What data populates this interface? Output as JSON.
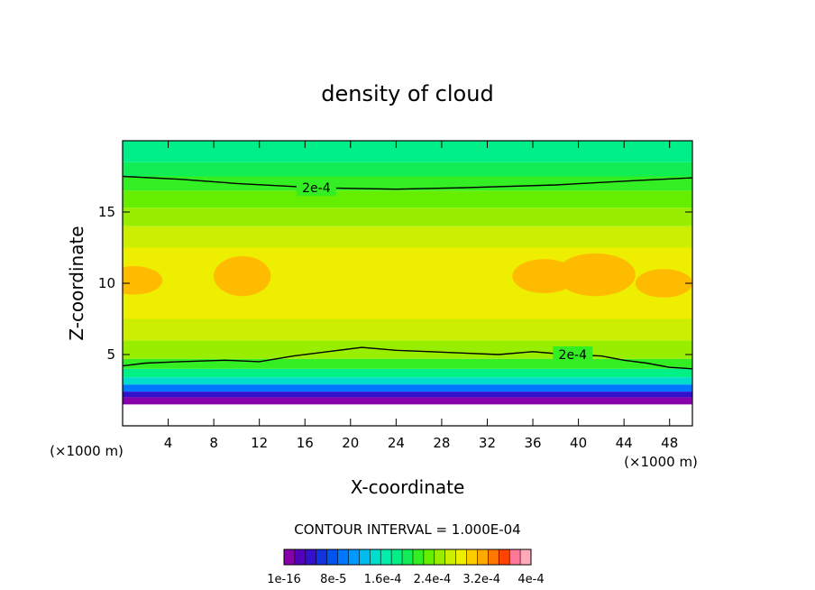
{
  "chart_data": {
    "type": "heatmap",
    "title": "density of cloud",
    "xlabel": "X-coordinate",
    "ylabel": "Z-coordinate",
    "x_unit": "(×1000 m)",
    "y_unit": "(×1000 m)",
    "xlim": [
      0,
      50
    ],
    "ylim": [
      0,
      20
    ],
    "x_ticks": [
      4,
      8,
      12,
      16,
      20,
      24,
      28,
      32,
      36,
      40,
      44,
      48
    ],
    "y_ticks": [
      5,
      10,
      15
    ],
    "contour_interval_label": "CONTOUR INTERVAL = 1.000E-04",
    "contour_labels": [
      {
        "text": "2e-4",
        "x": 17.0,
        "y": 16.7
      },
      {
        "text": "2e-4",
        "x": 39.5,
        "y": 5.0
      }
    ],
    "colorbar": {
      "levels": 22,
      "tick_labels": [
        "1e-16",
        "8e-5",
        "1.6e-4",
        "2.4e-4",
        "3.2e-4",
        "4e-4"
      ],
      "colors": [
        "#8800aa",
        "#5500bb",
        "#3311cc",
        "#1133dd",
        "#0055ee",
        "#0077ff",
        "#0099ff",
        "#00bbee",
        "#00ddcc",
        "#00eeaa",
        "#00f088",
        "#11ee55",
        "#33ee22",
        "#66ee00",
        "#99ee00",
        "#ccee00",
        "#eeee00",
        "#ffcc00",
        "#ffaa00",
        "#ff7700",
        "#ff4400",
        "#ff7799",
        "#ffaabb"
      ]
    },
    "bands": [
      {
        "z_bottom": 0.0,
        "z_top": 1.5,
        "color": "#ffffff"
      },
      {
        "z_bottom": 1.5,
        "z_top": 2.0,
        "color": "#8800aa"
      },
      {
        "z_bottom": 2.0,
        "z_top": 2.4,
        "color": "#3311cc"
      },
      {
        "z_bottom": 2.4,
        "z_top": 2.9,
        "color": "#0077ff"
      },
      {
        "z_bottom": 2.9,
        "z_top": 3.4,
        "color": "#00ddcc"
      },
      {
        "z_bottom": 3.4,
        "z_top": 4.0,
        "color": "#00f088"
      },
      {
        "z_bottom": 4.0,
        "z_top": 4.7,
        "color": "#33ee22"
      },
      {
        "z_bottom": 4.7,
        "z_top": 6.0,
        "color": "#99ee00"
      },
      {
        "z_bottom": 6.0,
        "z_top": 7.5,
        "color": "#ccee00"
      },
      {
        "z_bottom": 7.5,
        "z_top": 12.5,
        "color": "#eeee00"
      },
      {
        "z_bottom": 12.5,
        "z_top": 14.0,
        "color": "#ccee00"
      },
      {
        "z_bottom": 14.0,
        "z_top": 15.3,
        "color": "#99ee00"
      },
      {
        "z_bottom": 15.3,
        "z_top": 16.5,
        "color": "#66ee00"
      },
      {
        "z_bottom": 16.5,
        "z_top": 17.5,
        "color": "#33ee22"
      },
      {
        "z_bottom": 17.5,
        "z_top": 18.5,
        "color": "#11ee55"
      },
      {
        "z_bottom": 18.5,
        "z_top": 20.0,
        "color": "#00ee88"
      }
    ],
    "orange_regions": [
      {
        "x": 1.0,
        "z": 10.2,
        "rx": 2.5,
        "rz": 1.0
      },
      {
        "x": 10.5,
        "z": 10.5,
        "rx": 2.5,
        "rz": 1.4
      },
      {
        "x": 37.0,
        "z": 10.5,
        "rx": 2.8,
        "rz": 1.2
      },
      {
        "x": 41.5,
        "z": 10.6,
        "rx": 3.5,
        "rz": 1.5
      },
      {
        "x": 47.5,
        "z": 10.0,
        "rx": 2.5,
        "rz": 1.0
      }
    ],
    "contour_upper": [
      [
        0,
        17.5
      ],
      [
        5,
        17.3
      ],
      [
        10,
        17.0
      ],
      [
        17,
        16.7
      ],
      [
        24,
        16.6
      ],
      [
        30,
        16.7
      ],
      [
        38,
        16.9
      ],
      [
        45,
        17.2
      ],
      [
        50,
        17.4
      ]
    ],
    "contour_lower": [
      [
        0,
        4.2
      ],
      [
        2,
        4.4
      ],
      [
        5,
        4.5
      ],
      [
        9,
        4.6
      ],
      [
        12,
        4.5
      ],
      [
        15,
        4.9
      ],
      [
        18,
        5.2
      ],
      [
        21,
        5.5
      ],
      [
        24,
        5.3
      ],
      [
        27,
        5.2
      ],
      [
        30,
        5.1
      ],
      [
        33,
        5.0
      ],
      [
        36,
        5.2
      ],
      [
        39,
        5.0
      ],
      [
        42,
        4.9
      ],
      [
        44,
        4.6
      ],
      [
        46,
        4.4
      ],
      [
        48,
        4.1
      ],
      [
        50,
        4.0
      ]
    ]
  }
}
